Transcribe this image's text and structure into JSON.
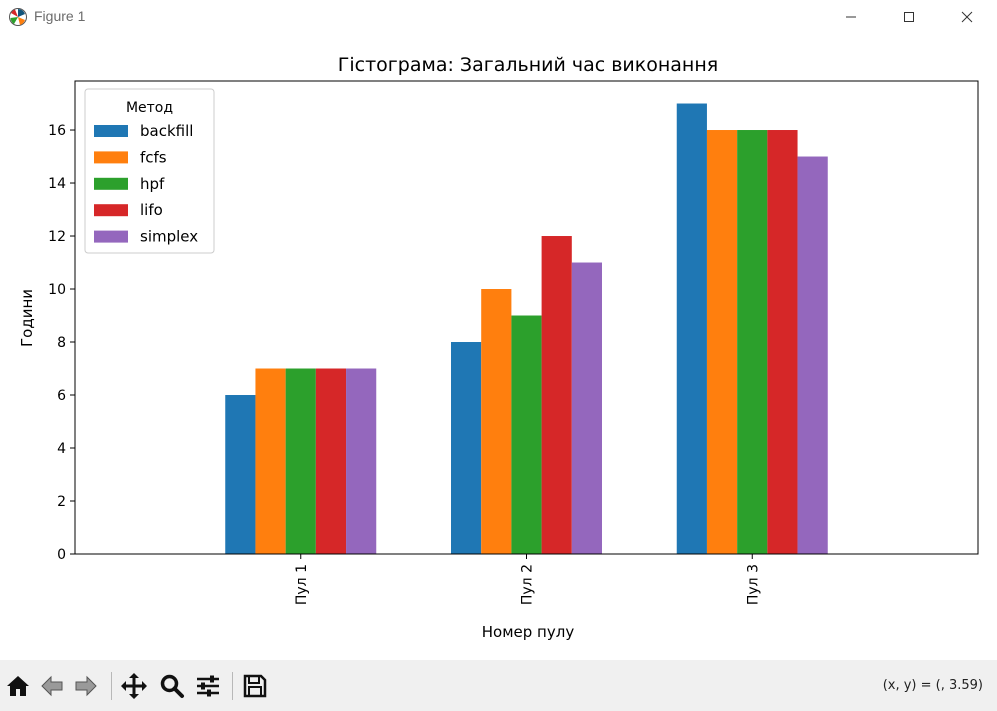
{
  "window": {
    "title": "Figure 1"
  },
  "toolbar": {
    "coords_text": "(x, y) = (, 3.59)",
    "tools": [
      "home-icon",
      "back-icon",
      "forward-icon",
      "pan-icon",
      "zoom-icon",
      "configure-subplots-icon",
      "save-icon"
    ]
  },
  "colors": {
    "backfill": "#1f77b4",
    "fcfs": "#ff7f0e",
    "hpf": "#2ca02c",
    "lifo": "#d62728",
    "simplex": "#9467bd"
  },
  "chart_data": {
    "type": "bar",
    "title": "Гістограма: Загальний час виконання",
    "xlabel": "Номер пулу",
    "ylabel": "Години",
    "categories": [
      "Пул 1",
      "Пул 2",
      "Пул 3"
    ],
    "series": [
      {
        "name": "backfill",
        "values": [
          6,
          8,
          17
        ],
        "color": "#1f77b4"
      },
      {
        "name": "fcfs",
        "values": [
          7,
          10,
          16
        ],
        "color": "#ff7f0e"
      },
      {
        "name": "hpf",
        "values": [
          7,
          9,
          16
        ],
        "color": "#2ca02c"
      },
      {
        "name": "lifo",
        "values": [
          7,
          12,
          16
        ],
        "color": "#d62728"
      },
      {
        "name": "simplex",
        "values": [
          7,
          11,
          15
        ],
        "color": "#9467bd"
      }
    ],
    "yticks": [
      0,
      2,
      4,
      6,
      8,
      10,
      12,
      14,
      16
    ],
    "ylim": [
      0,
      17.85
    ],
    "legend": {
      "title": "Метод",
      "position": "top-left"
    },
    "grid": false
  }
}
